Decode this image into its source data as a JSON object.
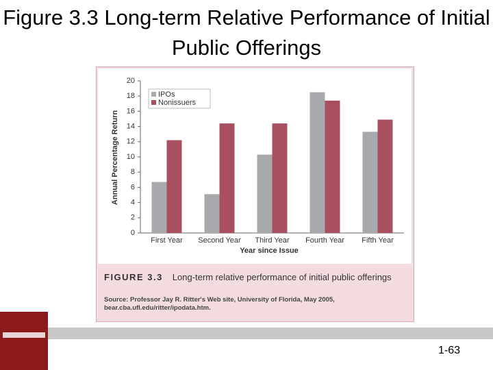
{
  "slide": {
    "title": "Figure 3.3 Long-term Relative Performance of Initial Public Offerings",
    "figure_label": "FIGURE 3.3",
    "caption": "Long-term relative performance of initial public offerings",
    "source": "Source: Professor Jay R. Ritter's Web site, University of Florida, May 2005, bear.cba.ufl.edu/ritter/ipodata.htm.",
    "page_number": "1-63"
  },
  "chart_data": {
    "type": "bar",
    "x_label": "Year since Issue",
    "y_label": "Annual Percentage Return",
    "categories": [
      "First Year",
      "Second Year",
      "Third Year",
      "Fourth Year",
      "Fifth Year"
    ],
    "series": [
      {
        "name": "IPOs",
        "color": "#a7a9ac",
        "values": [
          6.7,
          5.1,
          10.3,
          18.5,
          13.3
        ]
      },
      {
        "name": "Nonissuers",
        "color": "#a8505f",
        "values": [
          12.2,
          14.4,
          14.4,
          17.4,
          14.9
        ]
      }
    ],
    "ylim": [
      0,
      20
    ],
    "yticks": [
      0,
      2,
      4,
      6,
      8,
      10,
      12,
      14,
      16,
      18,
      20
    ],
    "legend": "upper left"
  }
}
